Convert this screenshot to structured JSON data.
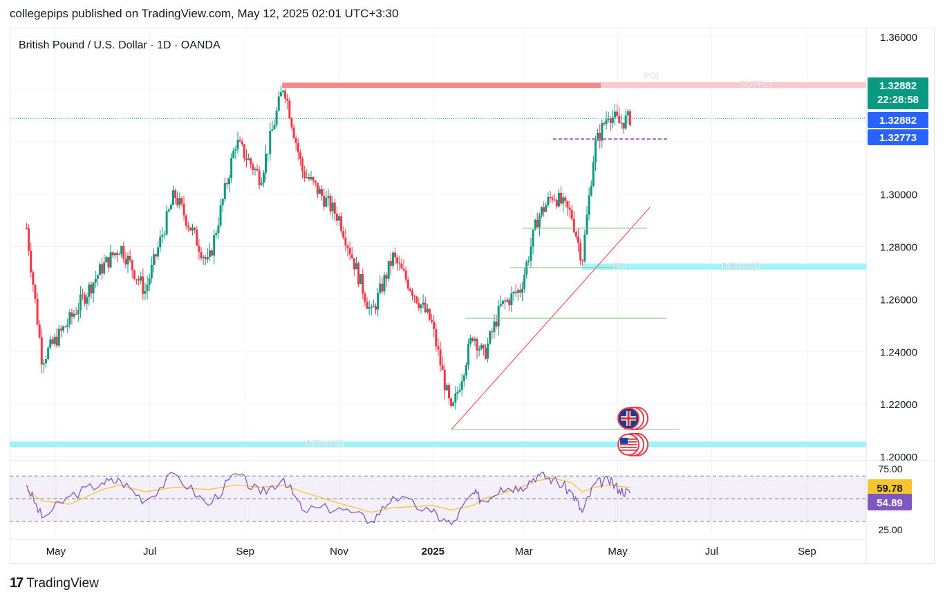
{
  "header": {
    "publisher_line": "collegepips published on TradingView.com, May 12, 2025 02:01 UTC+3:30"
  },
  "footer": {
    "brand_mark": "17",
    "brand": "TradingView"
  },
  "chart_data": {
    "type": "candlestick",
    "title": "British Pound / U.S. Dollar · 1D · OANDA",
    "price_axis": {
      "ticks": [
        "1.36000",
        "1.30000",
        "1.28000",
        "1.26000",
        "1.24000",
        "1.22000",
        "1.20000"
      ],
      "ylim": [
        1.2,
        1.36
      ]
    },
    "time_axis": {
      "ticks": [
        "May",
        "Jul",
        "Sep",
        "Nov",
        "2025",
        "Mar",
        "May",
        "Jul",
        "Sep"
      ]
    },
    "current": {
      "last_price": "1.32882",
      "countdown": "22:28:58",
      "close_price": "1.32882",
      "prev_price": "1.32773",
      "last_color": "#089981",
      "close_color": "#2962ff"
    },
    "close_path": [
      [
        "2024-04-12",
        1.287
      ],
      [
        "2024-04-22",
        1.237
      ],
      [
        "2024-05-10",
        1.252
      ],
      [
        "2024-05-31",
        1.272
      ],
      [
        "2024-06-12",
        1.28
      ],
      [
        "2024-06-28",
        1.263
      ],
      [
        "2024-07-17",
        1.3
      ],
      [
        "2024-08-08",
        1.273
      ],
      [
        "2024-08-26",
        1.32
      ],
      [
        "2024-09-11",
        1.306
      ],
      [
        "2024-09-26",
        1.342
      ],
      [
        "2024-10-08",
        1.309
      ],
      [
        "2024-11-01",
        1.291
      ],
      [
        "2024-11-22",
        1.254
      ],
      [
        "2024-12-06",
        1.276
      ],
      [
        "2024-12-31",
        1.251
      ],
      [
        "2025-01-13",
        1.216
      ],
      [
        "2025-01-27",
        1.247
      ],
      [
        "2025-02-03",
        1.238
      ],
      [
        "2025-02-14",
        1.257
      ],
      [
        "2025-02-27",
        1.264
      ],
      [
        "2025-03-10",
        1.291
      ],
      [
        "2025-03-20",
        1.3
      ],
      [
        "2025-04-01",
        1.292
      ],
      [
        "2025-04-08",
        1.275
      ],
      [
        "2025-04-16",
        1.318
      ],
      [
        "2025-04-25",
        1.331
      ],
      [
        "2025-05-02",
        1.327
      ],
      [
        "2025-05-09",
        1.329
      ]
    ],
    "zones": [
      {
        "label": "SUPPLY",
        "low": 1.3405,
        "high": 1.3427,
        "from": "2024-09-25",
        "to": "end",
        "color": "#f9c9cc"
      },
      {
        "label": "DEMAND",
        "low": 1.2712,
        "high": 1.2735,
        "from": "2025-04-08",
        "to": "end",
        "color": "#9ff4f8"
      },
      {
        "label": "DEMAND",
        "low": 1.2035,
        "high": 1.2057,
        "from": "start",
        "to": "end",
        "color": "#9ff4f8"
      }
    ],
    "poi_labels": [
      "POI",
      "POI"
    ],
    "annotations": [
      {
        "type": "line",
        "from": [
          "2024-09-25",
          1.3414
        ],
        "to": [
          "2025-04-20",
          1.3414
        ],
        "color": "#ef5350"
      },
      {
        "type": "trendline",
        "from": [
          "2025-01-13",
          1.2103
        ],
        "to": [
          "2025-05-22",
          1.295
        ],
        "color": "#f23645"
      },
      {
        "type": "hline",
        "y": 1.321,
        "from": "2025-03-20",
        "to": "2025-06-03",
        "color": "#ba68c8"
      },
      {
        "type": "hline",
        "y": 1.287,
        "from": "2025-02-28",
        "to": "2025-05-20",
        "color": "#81c784"
      },
      {
        "type": "hline",
        "y": 1.272,
        "from": "2025-02-20",
        "to": "2025-04-30",
        "color": "#81c784"
      },
      {
        "type": "hline",
        "y": 1.2527,
        "from": "2025-01-22",
        "to": "2025-06-02",
        "color": "#81c784"
      },
      {
        "type": "hline",
        "y": 1.2103,
        "from": "2025-01-13",
        "to": "2025-06-10",
        "color": "#81c784"
      }
    ],
    "events": [
      {
        "icon": "uk-flag-icon",
        "date": "2025-05-08",
        "y": 1.2145
      },
      {
        "icon": "us-flag-icon",
        "date": "2025-05-08",
        "y": 1.2045
      }
    ],
    "rsi": {
      "value": "54.89",
      "ma_value": "59.78",
      "value_color": "#7e57c2",
      "ma_color": "#f7c530",
      "bands": [
        70,
        50,
        30
      ],
      "ticks": [
        "75.00",
        "25.00"
      ],
      "path": [
        [
          "2024-04-12",
          62
        ],
        [
          "2024-04-22",
          33
        ],
        [
          "2024-05-10",
          52
        ],
        [
          "2024-05-31",
          64
        ],
        [
          "2024-06-12",
          66
        ],
        [
          "2024-06-28",
          48
        ],
        [
          "2024-07-17",
          72
        ],
        [
          "2024-08-08",
          44
        ],
        [
          "2024-08-26",
          72
        ],
        [
          "2024-09-11",
          54
        ],
        [
          "2024-09-26",
          68
        ],
        [
          "2024-10-08",
          40
        ],
        [
          "2024-11-01",
          42
        ],
        [
          "2024-11-22",
          30
        ],
        [
          "2024-12-06",
          52
        ],
        [
          "2024-12-31",
          38
        ],
        [
          "2025-01-13",
          27
        ],
        [
          "2025-01-27",
          55
        ],
        [
          "2025-02-03",
          48
        ],
        [
          "2025-02-14",
          60
        ],
        [
          "2025-02-27",
          60
        ],
        [
          "2025-03-10",
          71
        ],
        [
          "2025-03-20",
          67
        ],
        [
          "2025-04-01",
          56
        ],
        [
          "2025-04-08",
          38
        ],
        [
          "2025-04-16",
          63
        ],
        [
          "2025-04-25",
          66
        ],
        [
          "2025-05-02",
          58
        ],
        [
          "2025-05-09",
          54.89
        ]
      ],
      "ma_path": [
        [
          "2024-04-12",
          58
        ],
        [
          "2024-04-22",
          48
        ],
        [
          "2024-05-10",
          45
        ],
        [
          "2024-05-31",
          58
        ],
        [
          "2024-06-12",
          62
        ],
        [
          "2024-06-28",
          56
        ],
        [
          "2024-07-17",
          60
        ],
        [
          "2024-08-08",
          58
        ],
        [
          "2024-08-26",
          62
        ],
        [
          "2024-09-11",
          60
        ],
        [
          "2024-09-26",
          62
        ],
        [
          "2024-10-08",
          56
        ],
        [
          "2024-11-01",
          46
        ],
        [
          "2024-11-22",
          38
        ],
        [
          "2024-12-06",
          42
        ],
        [
          "2024-12-31",
          44
        ],
        [
          "2025-01-13",
          40
        ],
        [
          "2025-01-27",
          44
        ],
        [
          "2025-02-03",
          50
        ],
        [
          "2025-02-14",
          54
        ],
        [
          "2025-02-27",
          60
        ],
        [
          "2025-03-10",
          66
        ],
        [
          "2025-03-20",
          68
        ],
        [
          "2025-04-01",
          64
        ],
        [
          "2025-04-08",
          56
        ],
        [
          "2025-04-16",
          60
        ],
        [
          "2025-04-25",
          62
        ],
        [
          "2025-05-02",
          61
        ],
        [
          "2025-05-09",
          59.78
        ]
      ]
    }
  }
}
